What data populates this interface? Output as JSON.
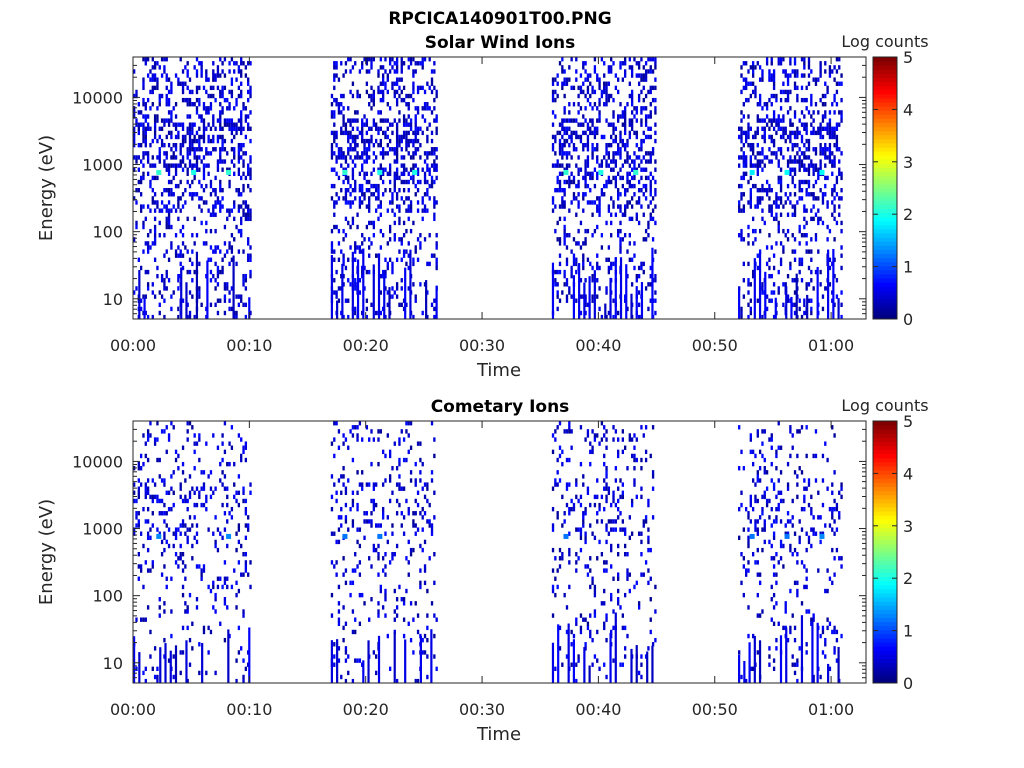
{
  "figure": {
    "title": "RPCICA140901T00.PNG"
  },
  "chart_data": [
    {
      "type": "heatmap",
      "title": "Solar Wind Ions",
      "xlabel": "Time",
      "ylabel": "Energy (eV)",
      "x_ticks": [
        "00:00",
        "00:10",
        "00:20",
        "00:30",
        "00:40",
        "00:50",
        "01:00"
      ],
      "y_ticks": [
        "10",
        "100",
        "1000",
        "10000"
      ],
      "y_scale": "log",
      "ylim": [
        5,
        40000
      ],
      "xlim_minutes": [
        0,
        63
      ],
      "colorbar": {
        "label": "Log counts",
        "ticks": [
          "0",
          "1",
          "2",
          "3",
          "4",
          "5"
        ],
        "range": [
          0,
          5
        ],
        "colormap": "jet"
      },
      "data_blocks": [
        {
          "start": "00:00",
          "end": "00:10"
        },
        {
          "start": "00:17",
          "end": "00:26"
        },
        {
          "start": "00:36",
          "end": "00:45"
        },
        {
          "start": "00:52",
          "end": "01:01"
        }
      ],
      "bright_spots": [
        {
          "time": "00:02",
          "energy": 750,
          "log_counts": 2.1
        },
        {
          "time": "00:05",
          "energy": 750,
          "log_counts": 2.0
        },
        {
          "time": "00:08",
          "energy": 750,
          "log_counts": 2.1
        },
        {
          "time": "00:18",
          "energy": 750,
          "log_counts": 2.1
        },
        {
          "time": "00:21",
          "energy": 750,
          "log_counts": 2.0
        },
        {
          "time": "00:24",
          "energy": 750,
          "log_counts": 2.0
        },
        {
          "time": "00:37",
          "energy": 750,
          "log_counts": 2.1
        },
        {
          "time": "00:40",
          "energy": 750,
          "log_counts": 2.0
        },
        {
          "time": "00:43",
          "energy": 750,
          "log_counts": 2.1
        },
        {
          "time": "00:53",
          "energy": 750,
          "log_counts": 1.8
        },
        {
          "time": "00:56",
          "energy": 750,
          "log_counts": 1.9
        },
        {
          "time": "00:59",
          "energy": 750,
          "log_counts": 1.9
        }
      ],
      "grid": false
    },
    {
      "type": "heatmap",
      "title": "Cometary Ions",
      "xlabel": "Time",
      "ylabel": "Energy (eV)",
      "x_ticks": [
        "00:00",
        "00:10",
        "00:20",
        "00:30",
        "00:40",
        "00:50",
        "01:00"
      ],
      "y_ticks": [
        "10",
        "100",
        "1000",
        "10000"
      ],
      "y_scale": "log",
      "ylim": [
        5,
        40000
      ],
      "xlim_minutes": [
        0,
        63
      ],
      "colorbar": {
        "label": "Log counts",
        "ticks": [
          "0",
          "1",
          "2",
          "3",
          "4",
          "5"
        ],
        "range": [
          0,
          5
        ],
        "colormap": "jet"
      },
      "data_blocks": [
        {
          "start": "00:00",
          "end": "00:10"
        },
        {
          "start": "00:17",
          "end": "00:26"
        },
        {
          "start": "00:36",
          "end": "00:45"
        },
        {
          "start": "00:52",
          "end": "01:01"
        }
      ],
      "bright_spots": [
        {
          "time": "00:02",
          "energy": 750,
          "log_counts": 1.3
        },
        {
          "time": "00:08",
          "energy": 750,
          "log_counts": 1.3
        },
        {
          "time": "00:18",
          "energy": 750,
          "log_counts": 1.2
        },
        {
          "time": "00:21",
          "energy": 750,
          "log_counts": 1.2
        },
        {
          "time": "00:37",
          "energy": 750,
          "log_counts": 1.2
        },
        {
          "time": "00:53",
          "energy": 750,
          "log_counts": 1.2
        },
        {
          "time": "00:56",
          "energy": 750,
          "log_counts": 1.2
        },
        {
          "time": "00:59",
          "energy": 750,
          "log_counts": 1.3
        }
      ],
      "grid": false
    }
  ]
}
